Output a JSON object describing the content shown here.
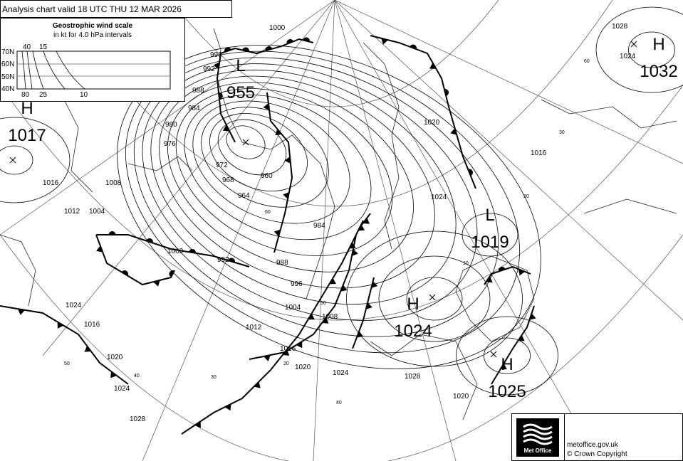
{
  "header": {
    "title": "Analysis chart  valid 18 UTC THU 12  MAR 2026"
  },
  "wind_scale": {
    "title": "Geostrophic wind scale",
    "subtitle": "in kt for 4.0 hPa intervals",
    "latitudes": [
      "70N",
      "60N",
      "50N",
      "40N"
    ],
    "top_labels": [
      "40",
      "15"
    ],
    "bottom_labels": [
      "80",
      "25",
      "10"
    ]
  },
  "pressure_centres": [
    {
      "type": "H",
      "value": "1017"
    },
    {
      "type": "L",
      "value": "955"
    },
    {
      "type": "H",
      "value": "1032"
    },
    {
      "type": "L",
      "value": "1019"
    },
    {
      "type": "H",
      "value": "1024"
    },
    {
      "type": "H",
      "value": "1025"
    }
  ],
  "isobar_labels": [
    "1000",
    "996",
    "992",
    "988",
    "984",
    "980",
    "976",
    "972",
    "968",
    "964",
    "960",
    "1004",
    "1008",
    "1012",
    "1016",
    "1020",
    "1024",
    "1028",
    "1000",
    "996",
    "992",
    "988",
    "984",
    "1004",
    "1008",
    "1012",
    "1016",
    "1020",
    "1024",
    "1028",
    "1024",
    "1020",
    "1016",
    "1024",
    "1020",
    "1016",
    "1028",
    "1024"
  ],
  "latitude_labels": [
    "60",
    "50",
    "40",
    "30",
    "20",
    "10",
    "40",
    "30",
    "20",
    "50",
    "60"
  ],
  "footer": {
    "logo_text": "Met Office",
    "website": "metoffice.gov.uk",
    "copyright": "© Crown Copyright"
  },
  "colors": {
    "lines": "#000000",
    "background": "#ffffff",
    "graticule": "#555555"
  }
}
